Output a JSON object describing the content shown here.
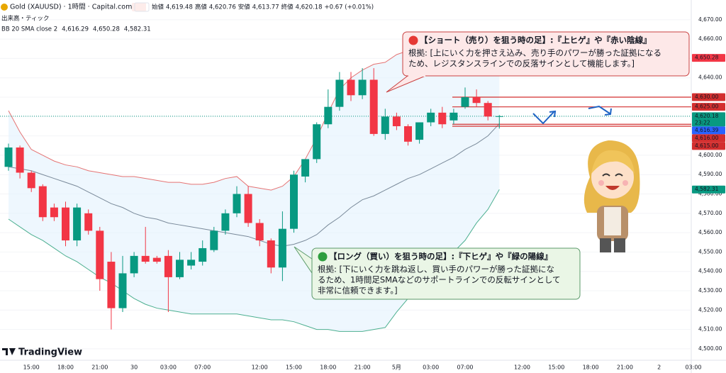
{
  "chart_data": {
    "type": "candlestick",
    "header": {
      "symbol": "Gold (XAUUSD) · 1時間 · Capital.com",
      "open_label": "始値",
      "open": "4,619.48",
      "high_label": "高値",
      "high": "4,620.76",
      "low_label": "安値",
      "low": "4,613.77",
      "close_label": "終値",
      "close": "4,620.18",
      "change": "+0.67 (+0.01%)",
      "volume_label": "出来高・ティック",
      "indicator": "BB 20 SMA close 2",
      "indicator_values": [
        "4,616.29",
        "4,650.28",
        "4,582.31"
      ]
    },
    "brand": "TradingView",
    "categories": [
      null,
      null,
      "15:00",
      null,
      null,
      "18:00",
      null,
      null,
      "21:00",
      null,
      null,
      "30",
      null,
      null,
      "03:00",
      null,
      null,
      "07:00",
      null,
      null,
      null,
      null,
      "12:00",
      null,
      null,
      "15:00",
      null,
      null,
      "18:00",
      null,
      null,
      "21:00",
      null,
      null,
      "5月",
      null,
      null,
      "03:00",
      null,
      null,
      "07:00",
      null,
      null,
      null,
      null,
      "12:00",
      null,
      null,
      "15:00",
      null,
      null,
      "18:00",
      null,
      null,
      "21:00",
      null,
      null,
      "2",
      null,
      null,
      "03:00"
    ],
    "open": [
      4594,
      4604,
      4591,
      4584,
      4573,
      4573,
      4556,
      4570,
      4561,
      4545,
      4521,
      4539,
      4548,
      4547,
      4548,
      4537,
      4543,
      4545,
      4551,
      4561,
      4570,
      4580,
      4565,
      4556,
      4542,
      4562,
      4589,
      4598,
      4616,
      4625,
      4639,
      4631,
      4639,
      4611,
      4620,
      4615,
      4608,
      4617,
      4622,
      4618,
      4625,
      4630,
      4627,
      4620,
      null,
      null,
      null,
      null,
      null,
      null,
      null,
      null,
      null,
      null,
      null,
      null,
      null,
      null,
      null,
      null,
      null
    ],
    "high": [
      4606,
      4605,
      4592,
      4585,
      4575,
      4576,
      4575,
      4572,
      4563,
      4550,
      4548,
      4550,
      4563,
      4548,
      4551,
      4550,
      4550,
      4556,
      4563,
      4572,
      4584,
      4584,
      4567,
      4557,
      4571,
      4592,
      4598,
      4617,
      4634,
      4643,
      4643,
      4645,
      4645,
      4624,
      4622,
      4616,
      4617,
      4624,
      4625,
      4624,
      4635,
      4634,
      4628,
      4620.76,
      null,
      null,
      null,
      null,
      null,
      null,
      null,
      null,
      null,
      null,
      null,
      null,
      null,
      null,
      null,
      null,
      null
    ],
    "low": [
      4592,
      4588,
      4581,
      4566,
      4566,
      4553,
      4553,
      4559,
      4530,
      4510,
      4519,
      4537,
      4544,
      4544,
      4519,
      4536,
      4541,
      4543,
      4550,
      4559,
      4568,
      4563,
      4553,
      4539,
      4535,
      4560,
      4586,
      4596,
      4614,
      4623,
      4628,
      4629,
      4610,
      4608,
      4613,
      4605,
      4606,
      4615,
      4614,
      4616,
      4624,
      4625,
      4618,
      4613.77,
      null,
      null,
      null,
      null,
      null,
      null,
      null,
      null,
      null,
      null,
      null,
      null,
      null,
      null,
      null,
      null,
      null
    ],
    "close": [
      4604,
      4591,
      4583,
      4568,
      4568,
      4556,
      4573,
      4561,
      4536,
      4521,
      4539,
      4548,
      4545,
      4545,
      4537,
      4546,
      4546,
      4552,
      4561,
      4570,
      4580,
      4565,
      4556,
      4542,
      4562,
      4590,
      4598,
      4616,
      4625,
      4639,
      4631,
      4639,
      4611,
      4620,
      4615,
      4607,
      4617,
      4622,
      4616,
      4622,
      4630,
      4627,
      4620,
      4620.18,
      null,
      null,
      null,
      null,
      null,
      null,
      null,
      null,
      null,
      null,
      null,
      null,
      null,
      null,
      null,
      null,
      null
    ],
    "up_color": "#089981",
    "down_color": "#f23645",
    "bollinger": {
      "upper": [
        4623,
        4612,
        4603,
        4600,
        4597,
        4595,
        4594,
        4592,
        4591,
        4590,
        4589,
        4589,
        4588,
        4587,
        4586,
        4586,
        4585,
        4585,
        4586,
        4588,
        4589,
        4584,
        4583,
        4582,
        4584,
        4589,
        4598,
        4609,
        4622,
        4634,
        4640,
        4644,
        4647,
        4648,
        4652,
        4654,
        4655,
        4655,
        4654,
        4654,
        4654,
        4654,
        4654,
        4650.28,
        null,
        null,
        null,
        null,
        null,
        null,
        null,
        null,
        null,
        null,
        null,
        null,
        null,
        null,
        null,
        null,
        null
      ],
      "basis": [
        4594,
        4593,
        4592,
        4590,
        4588,
        4586,
        4584,
        4581,
        4578,
        4575,
        4573,
        4570,
        4568,
        4567,
        4565,
        4564,
        4563,
        4562,
        4561,
        4560,
        4559,
        4558,
        4556,
        4554,
        4553,
        4554,
        4556,
        4559,
        4564,
        4568,
        4573,
        4577,
        4579,
        4582,
        4585,
        4588,
        4590,
        4593,
        4596,
        4599,
        4603,
        4606,
        4610,
        4616.29,
        null,
        null,
        null,
        null,
        null,
        null,
        null,
        null,
        null,
        null,
        null,
        null,
        null,
        null,
        null,
        null,
        null
      ],
      "lower": [
        4567,
        4563,
        4559,
        4556,
        4552,
        4548,
        4545,
        4541,
        4537,
        4534,
        4530,
        4526,
        4523,
        4521,
        4520,
        4519,
        4518,
        4518,
        4518,
        4518,
        4518,
        4517,
        4516,
        4515,
        4515,
        4514,
        4512,
        4510,
        4510,
        4509,
        4509,
        4509,
        4510,
        4511,
        4519,
        4526,
        4534,
        4539,
        4545,
        4550,
        4556,
        4565,
        4572,
        4582.31,
        null,
        null,
        null,
        null,
        null,
        null,
        null,
        null,
        null,
        null,
        null,
        null,
        null,
        null,
        null,
        null,
        null
      ],
      "upper_color": "#e57373",
      "basis_color": "#7a8a9a",
      "lower_color": "#4caf90",
      "fill": "#e3f2fd"
    },
    "ylim": [
      4494.1,
      4680.2
    ],
    "yticks": [
      {
        "value": 4500,
        "label": "4,500.00"
      },
      {
        "value": 4510,
        "label": "4,510.00"
      },
      {
        "value": 4520,
        "label": "4,520.00"
      },
      {
        "value": 4530,
        "label": "4,530.00"
      },
      {
        "value": 4540,
        "label": "4,540.00"
      },
      {
        "value": 4550,
        "label": "4,550.00"
      },
      {
        "value": 4560,
        "label": "4,560.00"
      },
      {
        "value": 4570,
        "label": "4,570.00"
      },
      {
        "value": 4580,
        "label": "4,580.00"
      },
      {
        "value": 4590,
        "label": "4,590.00"
      },
      {
        "value": 4600,
        "label": "4,600.00"
      },
      {
        "value": 4610,
        "label": "4,610.00"
      },
      {
        "value": 4620,
        "label": "4,620.00"
      },
      {
        "value": 4630,
        "label": "4,630.00"
      },
      {
        "value": 4640,
        "label": "4,640.00"
      },
      {
        "value": 4650,
        "label": "4,650.00"
      },
      {
        "value": 4660,
        "label": "4,660.00"
      },
      {
        "value": 4670,
        "label": "4,670.00"
      }
    ],
    "hlines": [
      4630,
      4625,
      4616,
      4615
    ],
    "hline_color": "#d32f2f",
    "price_labels": [
      {
        "value": 4650.28,
        "label": "4,650.28",
        "color": "#f23645"
      },
      {
        "value": 4630,
        "label": "4,630.00",
        "color": "#d32f2f"
      },
      {
        "value": 4625,
        "label": "4,625.00",
        "color": "#d32f2f"
      },
      {
        "value": 4620.18,
        "label": "4,620.18",
        "countdown": "23:22",
        "color": "#089981"
      },
      {
        "value": 4616,
        "label": "4,616.00",
        "color": "#d32f2f"
      },
      {
        "value": 4616.39,
        "label": "4,616.39",
        "color": "#2962ff"
      },
      {
        "value": 4615,
        "label": "4,615.00",
        "color": "#d32f2f"
      },
      {
        "value": 4582.31,
        "label": "4,582.31",
        "color": "#089981"
      }
    ],
    "annotations": [
      {
        "title": "【ショート（売り）を狙う時の足】:『上ヒゲ』や『赤い陰線』",
        "lines": [
          "根拠: [上にいく力を押さえ込み、売り手のパワーが勝った証拠になる",
          "ため、レジスタンスラインでの反落サインとして機能します。]"
        ]
      },
      {
        "title": "【ロング（買い）を狙う時の足】:『下ヒゲ』や『緑の陽線』",
        "lines": [
          "根拠: [下にいく力を跳ね返し、買い手のパワーが勝った証拠にな",
          "るため、1時間足SMAなどのサポートラインでの反転サインとして",
          "非常に信頼できます。]"
        ]
      }
    ]
  }
}
